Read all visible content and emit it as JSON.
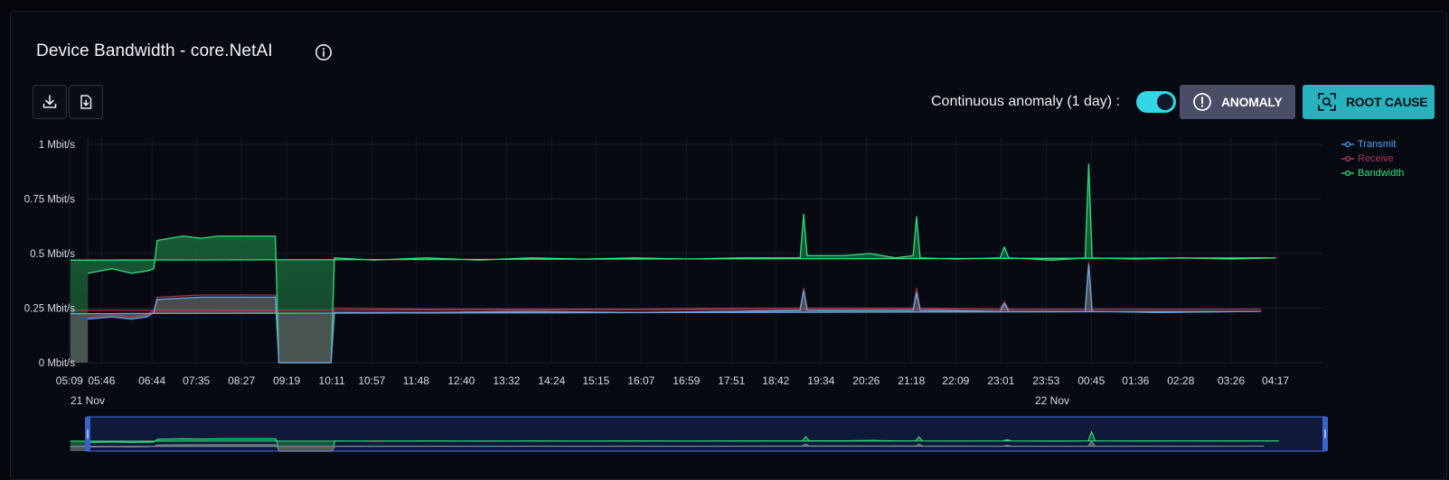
{
  "header": {
    "title": "Device Bandwidth - core.NetAI",
    "info_icon": "info-circle-icon",
    "download_icon": "download-icon",
    "export_icon": "file-export-icon"
  },
  "controls": {
    "continuous_label": "Continuous anomaly (1 day) :",
    "toggle_on": true,
    "anomaly_label": "ANOMALY",
    "root_cause_label": "ROOT CAUSE"
  },
  "colors": {
    "transmit": "#4aa3ff",
    "receive": "#c2405a",
    "bandwidth": "#2fe07a",
    "accent": "#33d6e6"
  },
  "chart_data": {
    "type": "area",
    "title": "",
    "xlabel": "",
    "ylabel": "",
    "ylim": [
      0,
      1
    ],
    "y_unit": "Mbit/s",
    "y_ticks": [
      "0 Mbit/s",
      "0.25 Mbit/s",
      "0.5 Mbit/s",
      "0.75 Mbit/s",
      "1 Mbit/s"
    ],
    "x_ticks": [
      "05:46",
      "06:44",
      "07:35",
      "08:27",
      "09:19",
      "10:11",
      "10:57",
      "11:48",
      "12:40",
      "13:32",
      "14:24",
      "15:15",
      "16:07",
      "16:59",
      "17:51",
      "18:42",
      "19:34",
      "20:26",
      "21:18",
      "22:09",
      "23:01",
      "23:53",
      "00:45",
      "01:36",
      "02:28",
      "03:26",
      "04:17",
      "05:09"
    ],
    "date_labels": [
      {
        "text": "21 Nov",
        "at": "05:30"
      },
      {
        "text": "22 Nov",
        "at": "00:00"
      }
    ],
    "grid": true,
    "legend": "top-right",
    "x_start": "05:30",
    "x_end": "05:10 (next day)",
    "series": [
      {
        "name": "Transmit",
        "values": [
          [
            "05:30",
            0.2
          ],
          [
            "05:58",
            0.21
          ],
          [
            "06:20",
            0.2
          ],
          [
            "06:38",
            0.21
          ],
          [
            "06:46",
            0.23
          ],
          [
            "06:50",
            0.29
          ],
          [
            "07:40",
            0.3
          ],
          [
            "08:30",
            0.3
          ],
          [
            "09:06",
            0.3
          ],
          [
            "09:10",
            0.0
          ],
          [
            "10:10",
            0.0
          ],
          [
            "10:14",
            0.23
          ],
          [
            "12:00",
            0.23
          ],
          [
            "14:00",
            0.235
          ],
          [
            "16:00",
            0.23
          ],
          [
            "18:00",
            0.235
          ],
          [
            "19:10",
            0.24
          ],
          [
            "19:14",
            0.33
          ],
          [
            "19:18",
            0.24
          ],
          [
            "21:20",
            0.24
          ],
          [
            "21:24",
            0.32
          ],
          [
            "21:28",
            0.24
          ],
          [
            "23:00",
            0.235
          ],
          [
            "23:05",
            0.27
          ],
          [
            "23:10",
            0.235
          ],
          [
            "00:38",
            0.235
          ],
          [
            "00:42",
            0.45
          ],
          [
            "00:46",
            0.235
          ],
          [
            "02:00",
            0.23
          ],
          [
            "04:00",
            0.235
          ],
          [
            "05:10",
            0.225
          ]
        ]
      },
      {
        "name": "Receive",
        "values": [
          [
            "05:30",
            0.21
          ],
          [
            "05:58",
            0.22
          ],
          [
            "06:20",
            0.21
          ],
          [
            "06:38",
            0.22
          ],
          [
            "06:46",
            0.24
          ],
          [
            "06:50",
            0.3
          ],
          [
            "07:40",
            0.31
          ],
          [
            "08:30",
            0.31
          ],
          [
            "09:06",
            0.31
          ],
          [
            "09:10",
            0.0
          ],
          [
            "10:10",
            0.0
          ],
          [
            "10:14",
            0.25
          ],
          [
            "12:00",
            0.245
          ],
          [
            "14:00",
            0.245
          ],
          [
            "16:00",
            0.245
          ],
          [
            "18:00",
            0.25
          ],
          [
            "19:10",
            0.25
          ],
          [
            "19:14",
            0.34
          ],
          [
            "19:18",
            0.25
          ],
          [
            "21:20",
            0.25
          ],
          [
            "21:24",
            0.34
          ],
          [
            "21:28",
            0.25
          ],
          [
            "23:00",
            0.245
          ],
          [
            "23:05",
            0.28
          ],
          [
            "23:10",
            0.245
          ],
          [
            "00:38",
            0.245
          ],
          [
            "00:42",
            0.46
          ],
          [
            "00:46",
            0.245
          ],
          [
            "02:00",
            0.245
          ],
          [
            "04:00",
            0.245
          ],
          [
            "05:10",
            0.24
          ]
        ]
      },
      {
        "name": "Bandwidth",
        "values": [
          [
            "05:30",
            0.41
          ],
          [
            "05:58",
            0.43
          ],
          [
            "06:20",
            0.41
          ],
          [
            "06:38",
            0.42
          ],
          [
            "06:46",
            0.43
          ],
          [
            "06:50",
            0.56
          ],
          [
            "07:20",
            0.58
          ],
          [
            "07:40",
            0.57
          ],
          [
            "08:00",
            0.58
          ],
          [
            "08:30",
            0.58
          ],
          [
            "09:06",
            0.58
          ],
          [
            "09:10",
            0.0
          ],
          [
            "10:10",
            0.0
          ],
          [
            "10:14",
            0.48
          ],
          [
            "11:00",
            0.47
          ],
          [
            "12:00",
            0.48
          ],
          [
            "13:00",
            0.47
          ],
          [
            "14:00",
            0.48
          ],
          [
            "15:00",
            0.475
          ],
          [
            "16:00",
            0.48
          ],
          [
            "17:00",
            0.475
          ],
          [
            "18:00",
            0.48
          ],
          [
            "18:40",
            0.48
          ],
          [
            "19:10",
            0.48
          ],
          [
            "19:14",
            0.68
          ],
          [
            "19:18",
            0.49
          ],
          [
            "20:00",
            0.49
          ],
          [
            "20:30",
            0.5
          ],
          [
            "21:00",
            0.48
          ],
          [
            "21:20",
            0.49
          ],
          [
            "21:24",
            0.67
          ],
          [
            "21:28",
            0.48
          ],
          [
            "22:10",
            0.475
          ],
          [
            "23:00",
            0.48
          ],
          [
            "23:05",
            0.53
          ],
          [
            "23:10",
            0.48
          ],
          [
            "00:00",
            0.47
          ],
          [
            "00:38",
            0.48
          ],
          [
            "00:42",
            0.91
          ],
          [
            "00:46",
            0.48
          ],
          [
            "01:36",
            0.475
          ],
          [
            "02:28",
            0.48
          ],
          [
            "03:26",
            0.475
          ],
          [
            "04:17",
            0.48
          ],
          [
            "05:10",
            0.47
          ]
        ]
      }
    ]
  }
}
